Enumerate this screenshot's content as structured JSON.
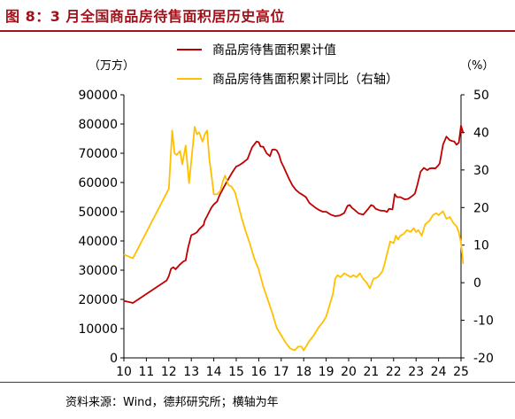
{
  "title": "图 8：3 月全国商品房待售面积居历史高位",
  "source": "资料来源：Wind，德邦研究所；横轴为年",
  "chart_data": {
    "type": "line",
    "left_unit": "（万方）",
    "right_unit": "（%）",
    "legend_position": "top-center",
    "left_ylim": [
      0,
      90000
    ],
    "right_ylim": [
      -20,
      50
    ],
    "left_yticks": [
      "0",
      "10000",
      "20000",
      "30000",
      "40000",
      "50000",
      "60000",
      "70000",
      "80000",
      "90000"
    ],
    "right_yticks": [
      "-20",
      "-10",
      "0",
      "10",
      "20",
      "30",
      "40",
      "50"
    ],
    "xlim": [
      10,
      25
    ],
    "xticks": [
      "10",
      "11",
      "12",
      "13",
      "14",
      "15",
      "16",
      "17",
      "18",
      "19",
      "20",
      "21",
      "22",
      "23",
      "24",
      "25"
    ],
    "series": [
      {
        "name": "商品房待售面积累计值",
        "axis": "left",
        "color": "#c00000",
        "x": [
          10.0,
          10.4,
          11.9,
          12.0,
          12.1,
          12.2,
          12.3,
          12.5,
          12.65,
          12.75,
          12.85,
          13.0,
          13.15,
          13.25,
          13.35,
          13.55,
          13.6,
          13.7,
          13.8,
          13.9,
          14.0,
          14.15,
          14.25,
          14.35,
          14.6,
          14.85,
          15.0,
          15.1,
          15.25,
          15.5,
          15.7,
          15.9,
          16.0,
          16.08,
          16.2,
          16.35,
          16.5,
          16.6,
          16.7,
          16.8,
          16.9,
          17.0,
          17.1,
          17.2,
          17.35,
          17.5,
          17.65,
          17.8,
          17.9,
          18.0,
          18.1,
          18.25,
          18.5,
          18.6,
          18.7,
          18.85,
          19.0,
          19.2,
          19.4,
          19.6,
          19.8,
          19.95,
          20.05,
          20.15,
          20.25,
          20.45,
          20.65,
          20.85,
          21.0,
          21.1,
          21.2,
          21.4,
          21.6,
          21.7,
          21.8,
          21.95,
          22.05,
          22.15,
          22.3,
          22.5,
          22.65,
          22.85,
          22.95,
          23.05,
          23.2,
          23.35,
          23.5,
          23.6,
          23.75,
          23.85,
          23.95,
          24.05,
          24.2,
          24.35,
          24.5,
          24.6,
          24.7,
          24.8,
          24.9,
          25.0,
          25.1
        ],
        "y": [
          19500,
          18800,
          26500,
          28000,
          30500,
          31000,
          30300,
          32000,
          33000,
          33300,
          37500,
          42000,
          42500,
          43000,
          44000,
          45500,
          47000,
          48500,
          50000,
          51500,
          52500,
          53500,
          55500,
          57000,
          60500,
          63800,
          65500,
          65800,
          66500,
          68000,
          72000,
          74000,
          73800,
          72300,
          72200,
          70000,
          69000,
          71200,
          71300,
          71000,
          69500,
          67000,
          65500,
          63700,
          61200,
          59000,
          57500,
          56500,
          56000,
          55500,
          55000,
          53000,
          51500,
          51000,
          50500,
          50000,
          50000,
          49000,
          48500,
          48700,
          49500,
          52000,
          52300,
          51300,
          50700,
          49400,
          49000,
          50800,
          52300,
          52000,
          51000,
          50400,
          50300,
          49900,
          51000,
          50800,
          56000,
          55000,
          55000,
          54200,
          54400,
          55500,
          56200,
          59000,
          63700,
          65000,
          64200,
          64800,
          64900,
          64800,
          65500,
          66500,
          73000,
          75700,
          74500,
          74200,
          74000,
          72900,
          73600,
          79500,
          76800
        ]
      },
      {
        "name": "商品房待售面积累计同比（右轴）",
        "axis": "right",
        "color": "#ffc000",
        "x": [
          10.0,
          10.2,
          10.4,
          12.0,
          12.15,
          12.25,
          12.35,
          12.5,
          12.6,
          12.75,
          12.9,
          13.05,
          13.15,
          13.25,
          13.35,
          13.5,
          13.6,
          13.7,
          13.8,
          13.9,
          14.0,
          14.15,
          14.3,
          14.4,
          14.5,
          14.65,
          14.8,
          14.95,
          15.1,
          15.25,
          15.4,
          15.6,
          15.8,
          16.0,
          16.2,
          16.4,
          16.6,
          16.8,
          17.0,
          17.2,
          17.4,
          17.6,
          17.75,
          17.9,
          18.0,
          18.1,
          18.25,
          18.45,
          18.65,
          18.85,
          19.0,
          19.15,
          19.3,
          19.4,
          19.5,
          19.65,
          19.8,
          19.95,
          20.1,
          20.2,
          20.35,
          20.5,
          20.65,
          20.8,
          20.95,
          21.1,
          21.3,
          21.5,
          21.6,
          21.7,
          21.85,
          22.0,
          22.1,
          22.2,
          22.3,
          22.45,
          22.6,
          22.75,
          22.9,
          23.0,
          23.1,
          23.25,
          23.4,
          23.6,
          23.75,
          23.9,
          24.0,
          24.1,
          24.2,
          24.35,
          24.5,
          24.65,
          24.8,
          24.9,
          25.0,
          25.1
        ],
        "y": [
          7.5,
          7.0,
          6.5,
          25.0,
          40.5,
          34.5,
          34.0,
          35.0,
          31.5,
          36.5,
          26.5,
          35.5,
          41.5,
          39.5,
          40.0,
          37.5,
          39.5,
          40.5,
          33.0,
          28.5,
          23.5,
          23.5,
          24.5,
          27.0,
          28.5,
          26.0,
          25.5,
          24.0,
          20.5,
          17.0,
          14.0,
          10.5,
          6.5,
          3.5,
          -1.0,
          -4.5,
          -8.0,
          -12.0,
          -14.0,
          -16.0,
          -17.5,
          -18.0,
          -17.0,
          -17.0,
          -18.0,
          -17.0,
          -15.5,
          -14.0,
          -12.0,
          -10.5,
          -9.0,
          -6.0,
          -3.0,
          1.0,
          2.0,
          1.5,
          2.5,
          2.0,
          1.5,
          2.0,
          1.5,
          2.5,
          1.0,
          0.0,
          -1.5,
          1.0,
          1.5,
          3.0,
          5.0,
          7.5,
          11.0,
          10.5,
          12.5,
          11.5,
          12.5,
          13.0,
          14.0,
          13.5,
          14.5,
          13.5,
          14.0,
          12.5,
          15.5,
          16.5,
          18.0,
          18.5,
          18.0,
          18.5,
          19.0,
          17.0,
          17.5,
          16.0,
          15.0,
          13.5,
          10.5,
          5.0
        ]
      }
    ]
  }
}
